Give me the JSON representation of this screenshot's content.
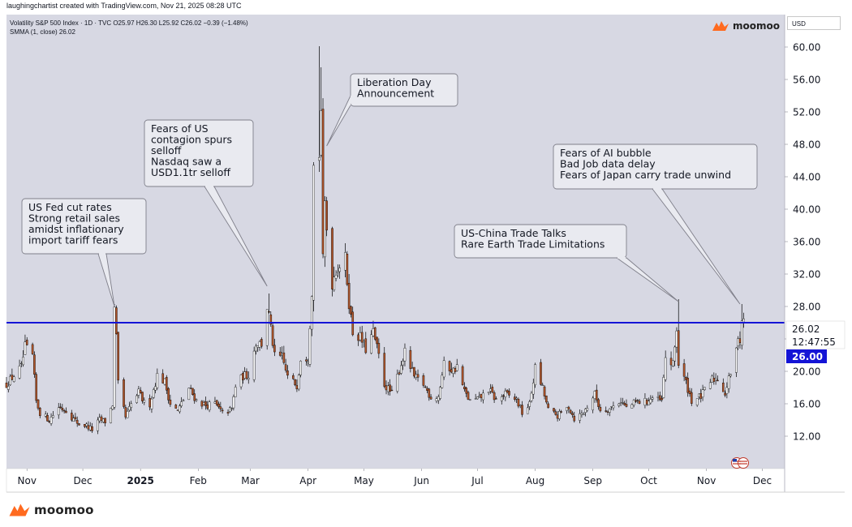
{
  "header": {
    "credit": "laughingchartist created with TradingView.com, Nov 21, 2025 08:28 UTC",
    "symbol_line": "Volatility S&P 500 Index · 1D · TVC   O25.97  H26.30  L25.92  C26.02  −0.39 (−1.48%)",
    "indicator_line": "SMMA (1, close)  26.02"
  },
  "brand": {
    "name": "moomoo",
    "color": "#ff6a1f"
  },
  "currency_label": "USD",
  "colors": {
    "plot_bg": "#d7d8e3",
    "up_candle": "#ffffff",
    "down_candle": "#b0552a",
    "wick": "#000000",
    "level_line": "#1414d6",
    "price_tag_bg": "#ffffff",
    "level_tag_bg": "#1414d6"
  },
  "price_labels": {
    "last_price": "26.02",
    "countdown": "12:47:55",
    "level_value": "26.00"
  },
  "chart_data": {
    "type": "candlestick",
    "series_name": "Volatility S&P 500 Index",
    "x_range": [
      "2024-10-21",
      "2025-12-13"
    ],
    "ylim": [
      8,
      64
    ],
    "yticks": [
      12,
      16,
      20,
      24,
      28,
      32,
      36,
      40,
      44,
      48,
      52,
      56,
      60
    ],
    "y_tick_labels": [
      "12.00",
      "16.00",
      "20.00",
      "24.00",
      "28.00",
      "32.00",
      "36.00",
      "40.00",
      "44.00",
      "48.00",
      "52.00",
      "56.00",
      "60.00"
    ],
    "x_ticks": [
      {
        "label": "Nov",
        "date": "2024-11-01",
        "bold": false
      },
      {
        "label": "Dec",
        "date": "2024-12-01",
        "bold": false
      },
      {
        "label": "2025",
        "date": "2025-01-01",
        "bold": true
      },
      {
        "label": "Feb",
        "date": "2025-02-01",
        "bold": false
      },
      {
        "label": "Mar",
        "date": "2025-03-01",
        "bold": false
      },
      {
        "label": "Apr",
        "date": "2025-04-01",
        "bold": false
      },
      {
        "label": "May",
        "date": "2025-05-01",
        "bold": false
      },
      {
        "label": "Jun",
        "date": "2025-06-01",
        "bold": false
      },
      {
        "label": "Jul",
        "date": "2025-07-01",
        "bold": false
      },
      {
        "label": "Aug",
        "date": "2025-08-01",
        "bold": false
      },
      {
        "label": "Sep",
        "date": "2025-09-01",
        "bold": false
      },
      {
        "label": "Oct",
        "date": "2025-10-01",
        "bold": false
      },
      {
        "label": "Nov",
        "date": "2025-11-01",
        "bold": false
      },
      {
        "label": "Dec",
        "date": "2025-12-01",
        "bold": false
      }
    ],
    "horizontal_line": 26.0,
    "grid": false,
    "close_path": [
      [
        "2024-10-21",
        18.4
      ],
      [
        "2024-10-25",
        19.5
      ],
      [
        "2024-10-29",
        20.5
      ],
      [
        "2024-10-31",
        23.0
      ],
      [
        "2024-11-04",
        21.9
      ],
      [
        "2024-11-06",
        16.3
      ],
      [
        "2024-11-08",
        14.9
      ],
      [
        "2024-11-13",
        14.0
      ],
      [
        "2024-11-18",
        15.6
      ],
      [
        "2024-11-22",
        15.2
      ],
      [
        "2024-11-26",
        14.1
      ],
      [
        "2024-11-29",
        13.5
      ],
      [
        "2024-12-03",
        13.3
      ],
      [
        "2024-12-06",
        12.8
      ],
      [
        "2024-12-10",
        14.0
      ],
      [
        "2024-12-13",
        13.8
      ],
      [
        "2024-12-17",
        15.9
      ],
      [
        "2024-12-18",
        27.6
      ],
      [
        "2024-12-19",
        24.1
      ],
      [
        "2024-12-20",
        18.4
      ],
      [
        "2024-12-24",
        14.3
      ],
      [
        "2024-12-27",
        15.9
      ],
      [
        "2024-12-31",
        17.4
      ],
      [
        "2025-01-03",
        16.1
      ],
      [
        "2025-01-06",
        16.0
      ],
      [
        "2025-01-10",
        19.5
      ],
      [
        "2025-01-14",
        18.7
      ],
      [
        "2025-01-17",
        16.0
      ],
      [
        "2025-01-21",
        15.1
      ],
      [
        "2025-01-27",
        17.9
      ],
      [
        "2025-01-31",
        16.4
      ],
      [
        "2025-02-05",
        15.8
      ],
      [
        "2025-02-10",
        16.0
      ],
      [
        "2025-02-14",
        14.8
      ],
      [
        "2025-02-19",
        15.3
      ],
      [
        "2025-02-21",
        18.2
      ],
      [
        "2025-02-25",
        19.4
      ],
      [
        "2025-02-28",
        19.6
      ],
      [
        "2025-03-04",
        23.5
      ],
      [
        "2025-03-07",
        23.4
      ],
      [
        "2025-03-10",
        27.9
      ],
      [
        "2025-03-11",
        26.9
      ],
      [
        "2025-03-14",
        21.8
      ],
      [
        "2025-03-18",
        21.7
      ],
      [
        "2025-03-21",
        19.3
      ],
      [
        "2025-03-26",
        18.3
      ],
      [
        "2025-03-28",
        21.7
      ],
      [
        "2025-04-01",
        21.8
      ],
      [
        "2025-04-03",
        30.0
      ],
      [
        "2025-04-04",
        45.3
      ],
      [
        "2025-04-07",
        46.9
      ],
      [
        "2025-04-08",
        52.3
      ],
      [
        "2025-04-09",
        33.6
      ],
      [
        "2025-04-10",
        40.7
      ],
      [
        "2025-04-11",
        37.6
      ],
      [
        "2025-04-14",
        30.9
      ],
      [
        "2025-04-16",
        32.6
      ],
      [
        "2025-04-21",
        33.8
      ],
      [
        "2025-04-23",
        28.5
      ],
      [
        "2025-04-25",
        24.8
      ],
      [
        "2025-04-29",
        24.2
      ],
      [
        "2025-05-02",
        22.7
      ],
      [
        "2025-05-06",
        24.8
      ],
      [
        "2025-05-09",
        21.9
      ],
      [
        "2025-05-12",
        18.4
      ],
      [
        "2025-05-16",
        17.2
      ],
      [
        "2025-05-21",
        20.9
      ],
      [
        "2025-05-23",
        22.3
      ],
      [
        "2025-05-28",
        19.3
      ],
      [
        "2025-06-02",
        18.4
      ],
      [
        "2025-06-06",
        16.8
      ],
      [
        "2025-06-10",
        16.9
      ],
      [
        "2025-06-13",
        20.8
      ],
      [
        "2025-06-18",
        20.1
      ],
      [
        "2025-06-20",
        20.6
      ],
      [
        "2025-06-24",
        17.5
      ],
      [
        "2025-06-27",
        16.3
      ],
      [
        "2025-07-02",
        16.6
      ],
      [
        "2025-07-07",
        17.8
      ],
      [
        "2025-07-11",
        16.4
      ],
      [
        "2025-07-16",
        17.2
      ],
      [
        "2025-07-22",
        16.5
      ],
      [
        "2025-07-25",
        14.9
      ],
      [
        "2025-07-29",
        15.9
      ],
      [
        "2025-08-01",
        20.4
      ],
      [
        "2025-08-05",
        17.9
      ],
      [
        "2025-08-08",
        15.2
      ],
      [
        "2025-08-13",
        14.5
      ],
      [
        "2025-08-19",
        15.6
      ],
      [
        "2025-08-22",
        14.2
      ],
      [
        "2025-08-27",
        14.9
      ],
      [
        "2025-09-02",
        17.2
      ],
      [
        "2025-09-05",
        15.2
      ],
      [
        "2025-09-10",
        15.4
      ],
      [
        "2025-09-16",
        16.4
      ],
      [
        "2025-09-19",
        15.5
      ],
      [
        "2025-09-24",
        16.2
      ],
      [
        "2025-09-30",
        16.3
      ],
      [
        "2025-10-03",
        16.7
      ],
      [
        "2025-10-08",
        16.3
      ],
      [
        "2025-10-10",
        21.7
      ],
      [
        "2025-10-14",
        20.8
      ],
      [
        "2025-10-16",
        25.3
      ],
      [
        "2025-10-17",
        20.8
      ],
      [
        "2025-10-21",
        18.6
      ],
      [
        "2025-10-24",
        16.4
      ],
      [
        "2025-10-29",
        16.9
      ],
      [
        "2025-11-04",
        19.0
      ],
      [
        "2025-11-07",
        19.1
      ],
      [
        "2025-11-11",
        17.3
      ],
      [
        "2025-11-14",
        19.8
      ],
      [
        "2025-11-17",
        22.4
      ],
      [
        "2025-11-18",
        24.7
      ],
      [
        "2025-11-19",
        23.7
      ],
      [
        "2025-11-20",
        26.4
      ],
      [
        "2025-11-21",
        26.02
      ]
    ],
    "spikes": [
      {
        "date": "2024-12-18",
        "high": 28.3
      },
      {
        "date": "2025-03-11",
        "high": 29.6
      },
      {
        "date": "2025-04-07",
        "high": 60.1
      },
      {
        "date": "2025-04-08",
        "high": 57.5
      },
      {
        "date": "2025-04-21",
        "high": 35.8
      },
      {
        "date": "2025-10-17",
        "high": 28.9
      },
      {
        "date": "2025-11-20",
        "high": 28.3
      }
    ],
    "annotations": [
      {
        "lines": [
          "US Fed cut rates",
          "Strong retail sales",
          "amidst inflationary",
          "import tariff fears"
        ],
        "target_date": "2024-12-18",
        "target_value": 28.0
      },
      {
        "lines": [
          "Fears of US",
          "contagion spurs",
          "selloff",
          "Nasdaq saw a",
          "USD1.1tr selloff"
        ],
        "target_date": "2025-03-10",
        "target_value": 30.5
      },
      {
        "lines": [
          "Liberation Day",
          "Announcement"
        ],
        "target_date": "2025-04-11",
        "target_value": 47.8
      },
      {
        "lines": [
          "US-China Trade Talks",
          "Rare Earth Trade Limitations"
        ],
        "target_date": "2025-10-17",
        "target_value": 28.6
      },
      {
        "lines": [
          "Fears of AI bubble",
          "Bad Job data delay",
          "Fears of Japan carry trade unwind"
        ],
        "target_date": "2025-11-19",
        "target_value": 28.3
      }
    ]
  }
}
